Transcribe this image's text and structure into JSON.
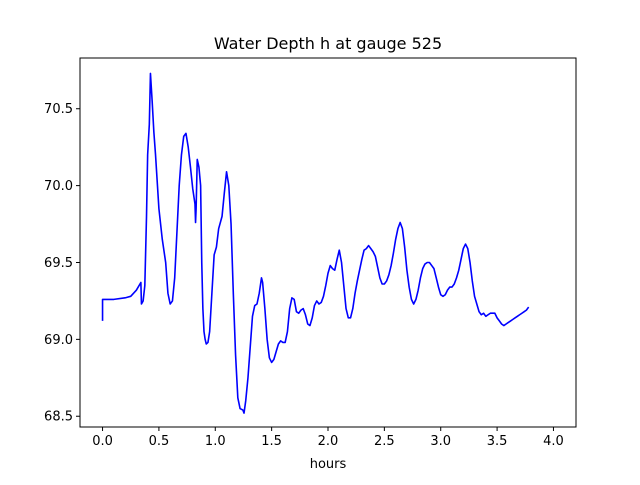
{
  "chart_data": {
    "type": "line",
    "title": "Water Depth h at gauge 525",
    "xlabel": "hours",
    "ylabel": "",
    "xlim": [
      -0.2,
      4.2
    ],
    "ylim": [
      68.43,
      70.83
    ],
    "xticks": [
      0.0,
      0.5,
      1.0,
      1.5,
      2.0,
      2.5,
      3.0,
      3.5,
      4.0
    ],
    "xtick_labels": [
      "0.0",
      "0.5",
      "1.0",
      "1.5",
      "2.0",
      "2.5",
      "3.0",
      "3.5",
      "4.0"
    ],
    "yticks": [
      68.5,
      69.0,
      69.5,
      70.0,
      70.5
    ],
    "ytick_labels": [
      "68.5",
      "69.0",
      "69.5",
      "70.0",
      "70.5"
    ],
    "grid": false,
    "legend": "none",
    "series": [
      {
        "color": "#0000ff",
        "points": [
          [
            0.0,
            69.12
          ],
          [
            0.0,
            69.26
          ],
          [
            0.1,
            69.26
          ],
          [
            0.2,
            69.27
          ],
          [
            0.25,
            69.28
          ],
          [
            0.3,
            69.32
          ],
          [
            0.34,
            69.37
          ],
          [
            0.345,
            69.23
          ],
          [
            0.36,
            69.25
          ],
          [
            0.375,
            69.35
          ],
          [
            0.39,
            69.8
          ],
          [
            0.4,
            70.2
          ],
          [
            0.415,
            70.4
          ],
          [
            0.425,
            70.73
          ],
          [
            0.44,
            70.55
          ],
          [
            0.455,
            70.35
          ],
          [
            0.47,
            70.2
          ],
          [
            0.5,
            69.85
          ],
          [
            0.53,
            69.65
          ],
          [
            0.56,
            69.5
          ],
          [
            0.58,
            69.3
          ],
          [
            0.6,
            69.23
          ],
          [
            0.62,
            69.25
          ],
          [
            0.64,
            69.4
          ],
          [
            0.66,
            69.7
          ],
          [
            0.68,
            70.0
          ],
          [
            0.7,
            70.2
          ],
          [
            0.72,
            70.32
          ],
          [
            0.74,
            70.34
          ],
          [
            0.76,
            70.25
          ],
          [
            0.78,
            70.12
          ],
          [
            0.8,
            69.98
          ],
          [
            0.82,
            69.88
          ],
          [
            0.825,
            69.76
          ],
          [
            0.83,
            69.85
          ],
          [
            0.84,
            70.17
          ],
          [
            0.855,
            70.12
          ],
          [
            0.87,
            70.0
          ],
          [
            0.88,
            69.5
          ],
          [
            0.89,
            69.2
          ],
          [
            0.9,
            69.05
          ],
          [
            0.91,
            69.0
          ],
          [
            0.92,
            68.97
          ],
          [
            0.935,
            68.98
          ],
          [
            0.95,
            69.05
          ],
          [
            0.97,
            69.3
          ],
          [
            0.99,
            69.55
          ],
          [
            1.01,
            69.6
          ],
          [
            1.03,
            69.72
          ],
          [
            1.06,
            69.8
          ],
          [
            1.08,
            69.95
          ],
          [
            1.1,
            70.09
          ],
          [
            1.12,
            70.0
          ],
          [
            1.14,
            69.75
          ],
          [
            1.16,
            69.3
          ],
          [
            1.18,
            68.9
          ],
          [
            1.2,
            68.62
          ],
          [
            1.22,
            68.55
          ],
          [
            1.245,
            68.54
          ],
          [
            1.255,
            68.52
          ],
          [
            1.27,
            68.6
          ],
          [
            1.29,
            68.75
          ],
          [
            1.31,
            68.95
          ],
          [
            1.33,
            69.15
          ],
          [
            1.35,
            69.22
          ],
          [
            1.37,
            69.23
          ],
          [
            1.39,
            69.3
          ],
          [
            1.41,
            69.4
          ],
          [
            1.42,
            69.37
          ],
          [
            1.44,
            69.2
          ],
          [
            1.46,
            69.0
          ],
          [
            1.48,
            68.88
          ],
          [
            1.5,
            68.85
          ],
          [
            1.52,
            68.87
          ],
          [
            1.54,
            68.92
          ],
          [
            1.56,
            68.97
          ],
          [
            1.58,
            68.99
          ],
          [
            1.6,
            68.98
          ],
          [
            1.62,
            68.98
          ],
          [
            1.64,
            69.05
          ],
          [
            1.66,
            69.2
          ],
          [
            1.68,
            69.27
          ],
          [
            1.7,
            69.26
          ],
          [
            1.72,
            69.18
          ],
          [
            1.74,
            69.17
          ],
          [
            1.76,
            69.19
          ],
          [
            1.78,
            69.2
          ],
          [
            1.8,
            69.16
          ],
          [
            1.82,
            69.1
          ],
          [
            1.84,
            69.09
          ],
          [
            1.86,
            69.14
          ],
          [
            1.88,
            69.22
          ],
          [
            1.9,
            69.25
          ],
          [
            1.92,
            69.23
          ],
          [
            1.94,
            69.24
          ],
          [
            1.96,
            69.28
          ],
          [
            1.98,
            69.35
          ],
          [
            2.0,
            69.43
          ],
          [
            2.02,
            69.48
          ],
          [
            2.04,
            69.46
          ],
          [
            2.06,
            69.45
          ],
          [
            2.08,
            69.52
          ],
          [
            2.1,
            69.58
          ],
          [
            2.12,
            69.5
          ],
          [
            2.14,
            69.35
          ],
          [
            2.16,
            69.2
          ],
          [
            2.18,
            69.14
          ],
          [
            2.2,
            69.14
          ],
          [
            2.22,
            69.2
          ],
          [
            2.24,
            69.3
          ],
          [
            2.26,
            69.38
          ],
          [
            2.28,
            69.45
          ],
          [
            2.3,
            69.52
          ],
          [
            2.32,
            69.58
          ],
          [
            2.34,
            69.59
          ],
          [
            2.36,
            69.61
          ],
          [
            2.38,
            69.59
          ],
          [
            2.4,
            69.57
          ],
          [
            2.42,
            69.54
          ],
          [
            2.44,
            69.47
          ],
          [
            2.46,
            69.4
          ],
          [
            2.48,
            69.36
          ],
          [
            2.5,
            69.36
          ],
          [
            2.52,
            69.38
          ],
          [
            2.54,
            69.42
          ],
          [
            2.56,
            69.48
          ],
          [
            2.58,
            69.56
          ],
          [
            2.6,
            69.65
          ],
          [
            2.62,
            69.72
          ],
          [
            2.64,
            69.76
          ],
          [
            2.66,
            69.72
          ],
          [
            2.68,
            69.6
          ],
          [
            2.7,
            69.45
          ],
          [
            2.72,
            69.34
          ],
          [
            2.74,
            69.26
          ],
          [
            2.76,
            69.23
          ],
          [
            2.78,
            69.26
          ],
          [
            2.8,
            69.32
          ],
          [
            2.82,
            69.4
          ],
          [
            2.84,
            69.46
          ],
          [
            2.86,
            69.49
          ],
          [
            2.88,
            69.5
          ],
          [
            2.9,
            69.5
          ],
          [
            2.92,
            69.48
          ],
          [
            2.94,
            69.46
          ],
          [
            2.96,
            69.4
          ],
          [
            2.98,
            69.34
          ],
          [
            3.0,
            69.29
          ],
          [
            3.02,
            69.28
          ],
          [
            3.04,
            69.29
          ],
          [
            3.06,
            69.32
          ],
          [
            3.08,
            69.34
          ],
          [
            3.1,
            69.34
          ],
          [
            3.12,
            69.36
          ],
          [
            3.14,
            69.4
          ],
          [
            3.16,
            69.45
          ],
          [
            3.18,
            69.52
          ],
          [
            3.2,
            69.59
          ],
          [
            3.22,
            69.62
          ],
          [
            3.24,
            69.59
          ],
          [
            3.26,
            69.5
          ],
          [
            3.28,
            69.38
          ],
          [
            3.3,
            69.28
          ],
          [
            3.32,
            69.23
          ],
          [
            3.34,
            69.18
          ],
          [
            3.36,
            69.16
          ],
          [
            3.38,
            69.17
          ],
          [
            3.4,
            69.15
          ],
          [
            3.42,
            69.16
          ],
          [
            3.44,
            69.17
          ],
          [
            3.46,
            69.17
          ],
          [
            3.48,
            69.17
          ],
          [
            3.5,
            69.14
          ],
          [
            3.52,
            69.12
          ],
          [
            3.54,
            69.1
          ],
          [
            3.56,
            69.09
          ],
          [
            3.58,
            69.1
          ],
          [
            3.6,
            69.11
          ],
          [
            3.62,
            69.12
          ],
          [
            3.64,
            69.13
          ],
          [
            3.66,
            69.14
          ],
          [
            3.68,
            69.15
          ],
          [
            3.7,
            69.16
          ],
          [
            3.72,
            69.17
          ],
          [
            3.74,
            69.18
          ],
          [
            3.76,
            69.19
          ],
          [
            3.78,
            69.21
          ]
        ]
      }
    ]
  }
}
